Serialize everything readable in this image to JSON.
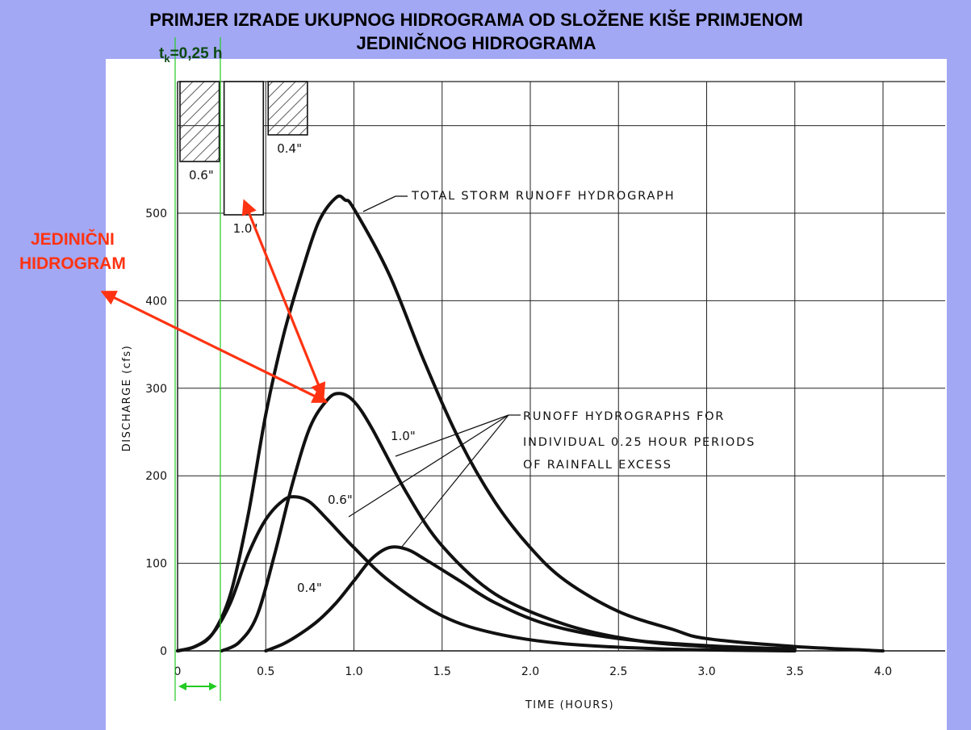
{
  "slide": {
    "title_line1": "PRIMJER IZRADE UKUPNOG HIDROGRAMA OD SLOŽENE KIŠE PRIMJENOM",
    "title_line2": "JEDINIČNOG HIDROGRAMA",
    "background_color": "#a3a8f4"
  },
  "annotations": {
    "tk_prefix": "t",
    "tk_sub": "k",
    "tk_rest": "=0,25 h",
    "tk_color": "#0d4a12",
    "bracket_color": "#22cc22",
    "unit_hydrograph_line1": "JEDINIČNI",
    "unit_hydrograph_line2": "HIDROGRAM",
    "unit_hydrograph_color": "#ff3311"
  },
  "chart_data": {
    "type": "line",
    "xlabel": "TIME (HOURS)",
    "ylabel": "DISCHARGE (cfs)",
    "xlim": [
      0,
      4.0
    ],
    "ylim": [
      0,
      500
    ],
    "x_ticks": [
      "0",
      "0.5",
      "1.0",
      "1.5",
      "2.0",
      "2.5",
      "3.0",
      "3.5",
      "4.0"
    ],
    "x_tick_values": [
      0,
      0.5,
      1.0,
      1.5,
      2.0,
      2.5,
      3.0,
      3.5,
      4.0
    ],
    "y_ticks": [
      "0",
      "100",
      "200",
      "300",
      "400",
      "500"
    ],
    "y_tick_values": [
      0,
      100,
      200,
      300,
      400,
      500
    ],
    "grid": true,
    "rainfall_excess": [
      {
        "label": "0.6\"",
        "start": 0.0,
        "end": 0.25,
        "depth": 0.6,
        "hatched": true
      },
      {
        "label": "1.0\"",
        "start": 0.25,
        "end": 0.5,
        "depth": 1.0,
        "hatched": false
      },
      {
        "label": "0.4\"",
        "start": 0.5,
        "end": 0.75,
        "depth": 0.4,
        "hatched": true
      }
    ],
    "series": [
      {
        "name": "0.6\"",
        "points": [
          [
            0,
            0
          ],
          [
            0.1,
            5
          ],
          [
            0.2,
            20
          ],
          [
            0.3,
            55
          ],
          [
            0.4,
            110
          ],
          [
            0.5,
            150
          ],
          [
            0.6,
            172
          ],
          [
            0.67,
            176
          ],
          [
            0.75,
            170
          ],
          [
            0.85,
            150
          ],
          [
            1.0,
            118
          ],
          [
            1.2,
            80
          ],
          [
            1.5,
            40
          ],
          [
            1.8,
            20
          ],
          [
            2.2,
            8
          ],
          [
            2.8,
            2
          ],
          [
            3.5,
            0
          ]
        ]
      },
      {
        "name": "1.0\"",
        "points": [
          [
            0.25,
            0
          ],
          [
            0.35,
            10
          ],
          [
            0.45,
            40
          ],
          [
            0.55,
            110
          ],
          [
            0.65,
            190
          ],
          [
            0.75,
            255
          ],
          [
            0.85,
            287
          ],
          [
            0.92,
            294
          ],
          [
            1.0,
            285
          ],
          [
            1.1,
            255
          ],
          [
            1.3,
            180
          ],
          [
            1.5,
            120
          ],
          [
            1.8,
            65
          ],
          [
            2.2,
            30
          ],
          [
            2.6,
            12
          ],
          [
            3.0,
            5
          ],
          [
            3.5,
            2
          ]
        ]
      },
      {
        "name": "0.4\"",
        "points": [
          [
            0.5,
            0
          ],
          [
            0.6,
            8
          ],
          [
            0.7,
            20
          ],
          [
            0.8,
            35
          ],
          [
            0.9,
            55
          ],
          [
            1.0,
            80
          ],
          [
            1.1,
            105
          ],
          [
            1.2,
            118
          ],
          [
            1.3,
            116
          ],
          [
            1.4,
            105
          ],
          [
            1.6,
            80
          ],
          [
            1.8,
            55
          ],
          [
            2.1,
            30
          ],
          [
            2.5,
            14
          ],
          [
            3.0,
            6
          ],
          [
            3.5,
            2
          ]
        ]
      },
      {
        "name": "TOTAL STORM RUNOFF HYDROGRAPH",
        "points": [
          [
            0,
            0
          ],
          [
            0.1,
            5
          ],
          [
            0.2,
            20
          ],
          [
            0.3,
            65
          ],
          [
            0.4,
            155
          ],
          [
            0.5,
            270
          ],
          [
            0.6,
            360
          ],
          [
            0.7,
            430
          ],
          [
            0.8,
            490
          ],
          [
            0.9,
            518
          ],
          [
            0.95,
            515
          ],
          [
            1.0,
            505
          ],
          [
            1.2,
            430
          ],
          [
            1.4,
            330
          ],
          [
            1.6,
            240
          ],
          [
            1.8,
            170
          ],
          [
            2.0,
            118
          ],
          [
            2.2,
            80
          ],
          [
            2.5,
            45
          ],
          [
            2.8,
            25
          ],
          [
            3.0,
            14
          ],
          [
            3.5,
            5
          ],
          [
            4.0,
            0
          ]
        ]
      }
    ],
    "annotations": [
      {
        "text": "TOTAL STORM RUNOFF HYDROGRAPH"
      },
      {
        "text_line1": "RUNOFF HYDROGRAPHS FOR",
        "text_line2": "INDIVIDUAL 0.25 HOUR PERIODS",
        "text_line3": "OF RAINFALL EXCESS"
      },
      {
        "text": "1.0\""
      },
      {
        "text": "0.6\""
      },
      {
        "text": "0.4\""
      }
    ]
  }
}
